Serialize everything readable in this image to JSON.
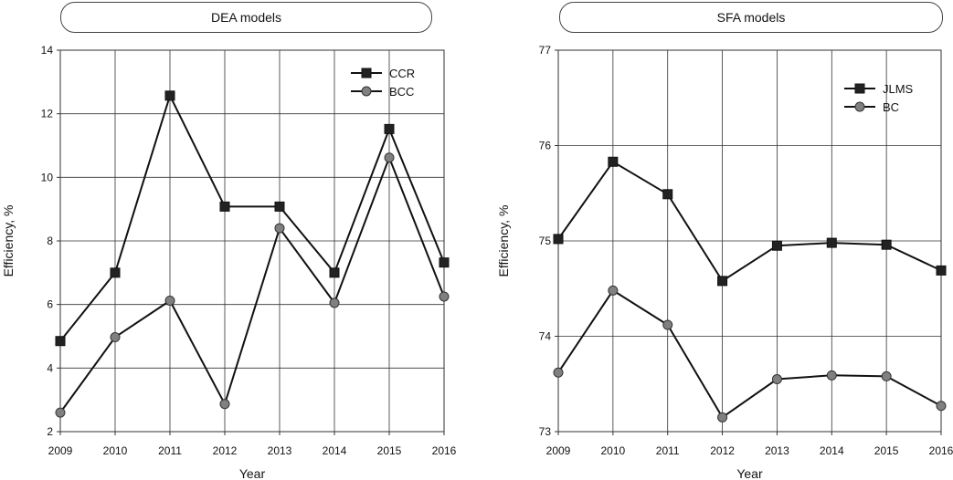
{
  "chart_data": [
    {
      "type": "line",
      "title": "DEA  models",
      "xlabel": "Year",
      "ylabel": "Efficiency, %",
      "categories": [
        "2009",
        "2010",
        "2011",
        "2012",
        "2013",
        "2014",
        "2015",
        "2016"
      ],
      "ylim": [
        2,
        14
      ],
      "yticks": [
        2,
        4,
        6,
        8,
        10,
        12,
        14
      ],
      "grid": true,
      "legend_position": "top-right",
      "series": [
        {
          "name": "CCR",
          "marker": "square",
          "marker_color": "#222222",
          "values": [
            4.85,
            7.0,
            12.57,
            9.08,
            9.08,
            7.0,
            11.52,
            7.32
          ]
        },
        {
          "name": "BCC",
          "marker": "circle",
          "marker_color": "#808080",
          "values": [
            2.6,
            4.97,
            6.12,
            2.87,
            8.4,
            6.05,
            10.62,
            6.25
          ]
        }
      ]
    },
    {
      "type": "line",
      "title": "SFA models",
      "xlabel": "Year",
      "ylabel": "Efficiency, %",
      "categories": [
        "2009",
        "2010",
        "2011",
        "2012",
        "2013",
        "2014",
        "2015",
        "2016"
      ],
      "ylim": [
        73,
        77
      ],
      "yticks": [
        73,
        74,
        75,
        76,
        77
      ],
      "grid": true,
      "legend_position": "top-right",
      "series": [
        {
          "name": "JLMS",
          "marker": "square",
          "marker_color": "#222222",
          "values": [
            75.02,
            75.83,
            75.49,
            74.58,
            74.95,
            74.98,
            74.96,
            74.69
          ]
        },
        {
          "name": "BC",
          "marker": "circle",
          "marker_color": "#808080",
          "values": [
            73.62,
            74.48,
            74.12,
            73.15,
            73.55,
            73.59,
            73.58,
            73.27
          ]
        }
      ]
    }
  ]
}
